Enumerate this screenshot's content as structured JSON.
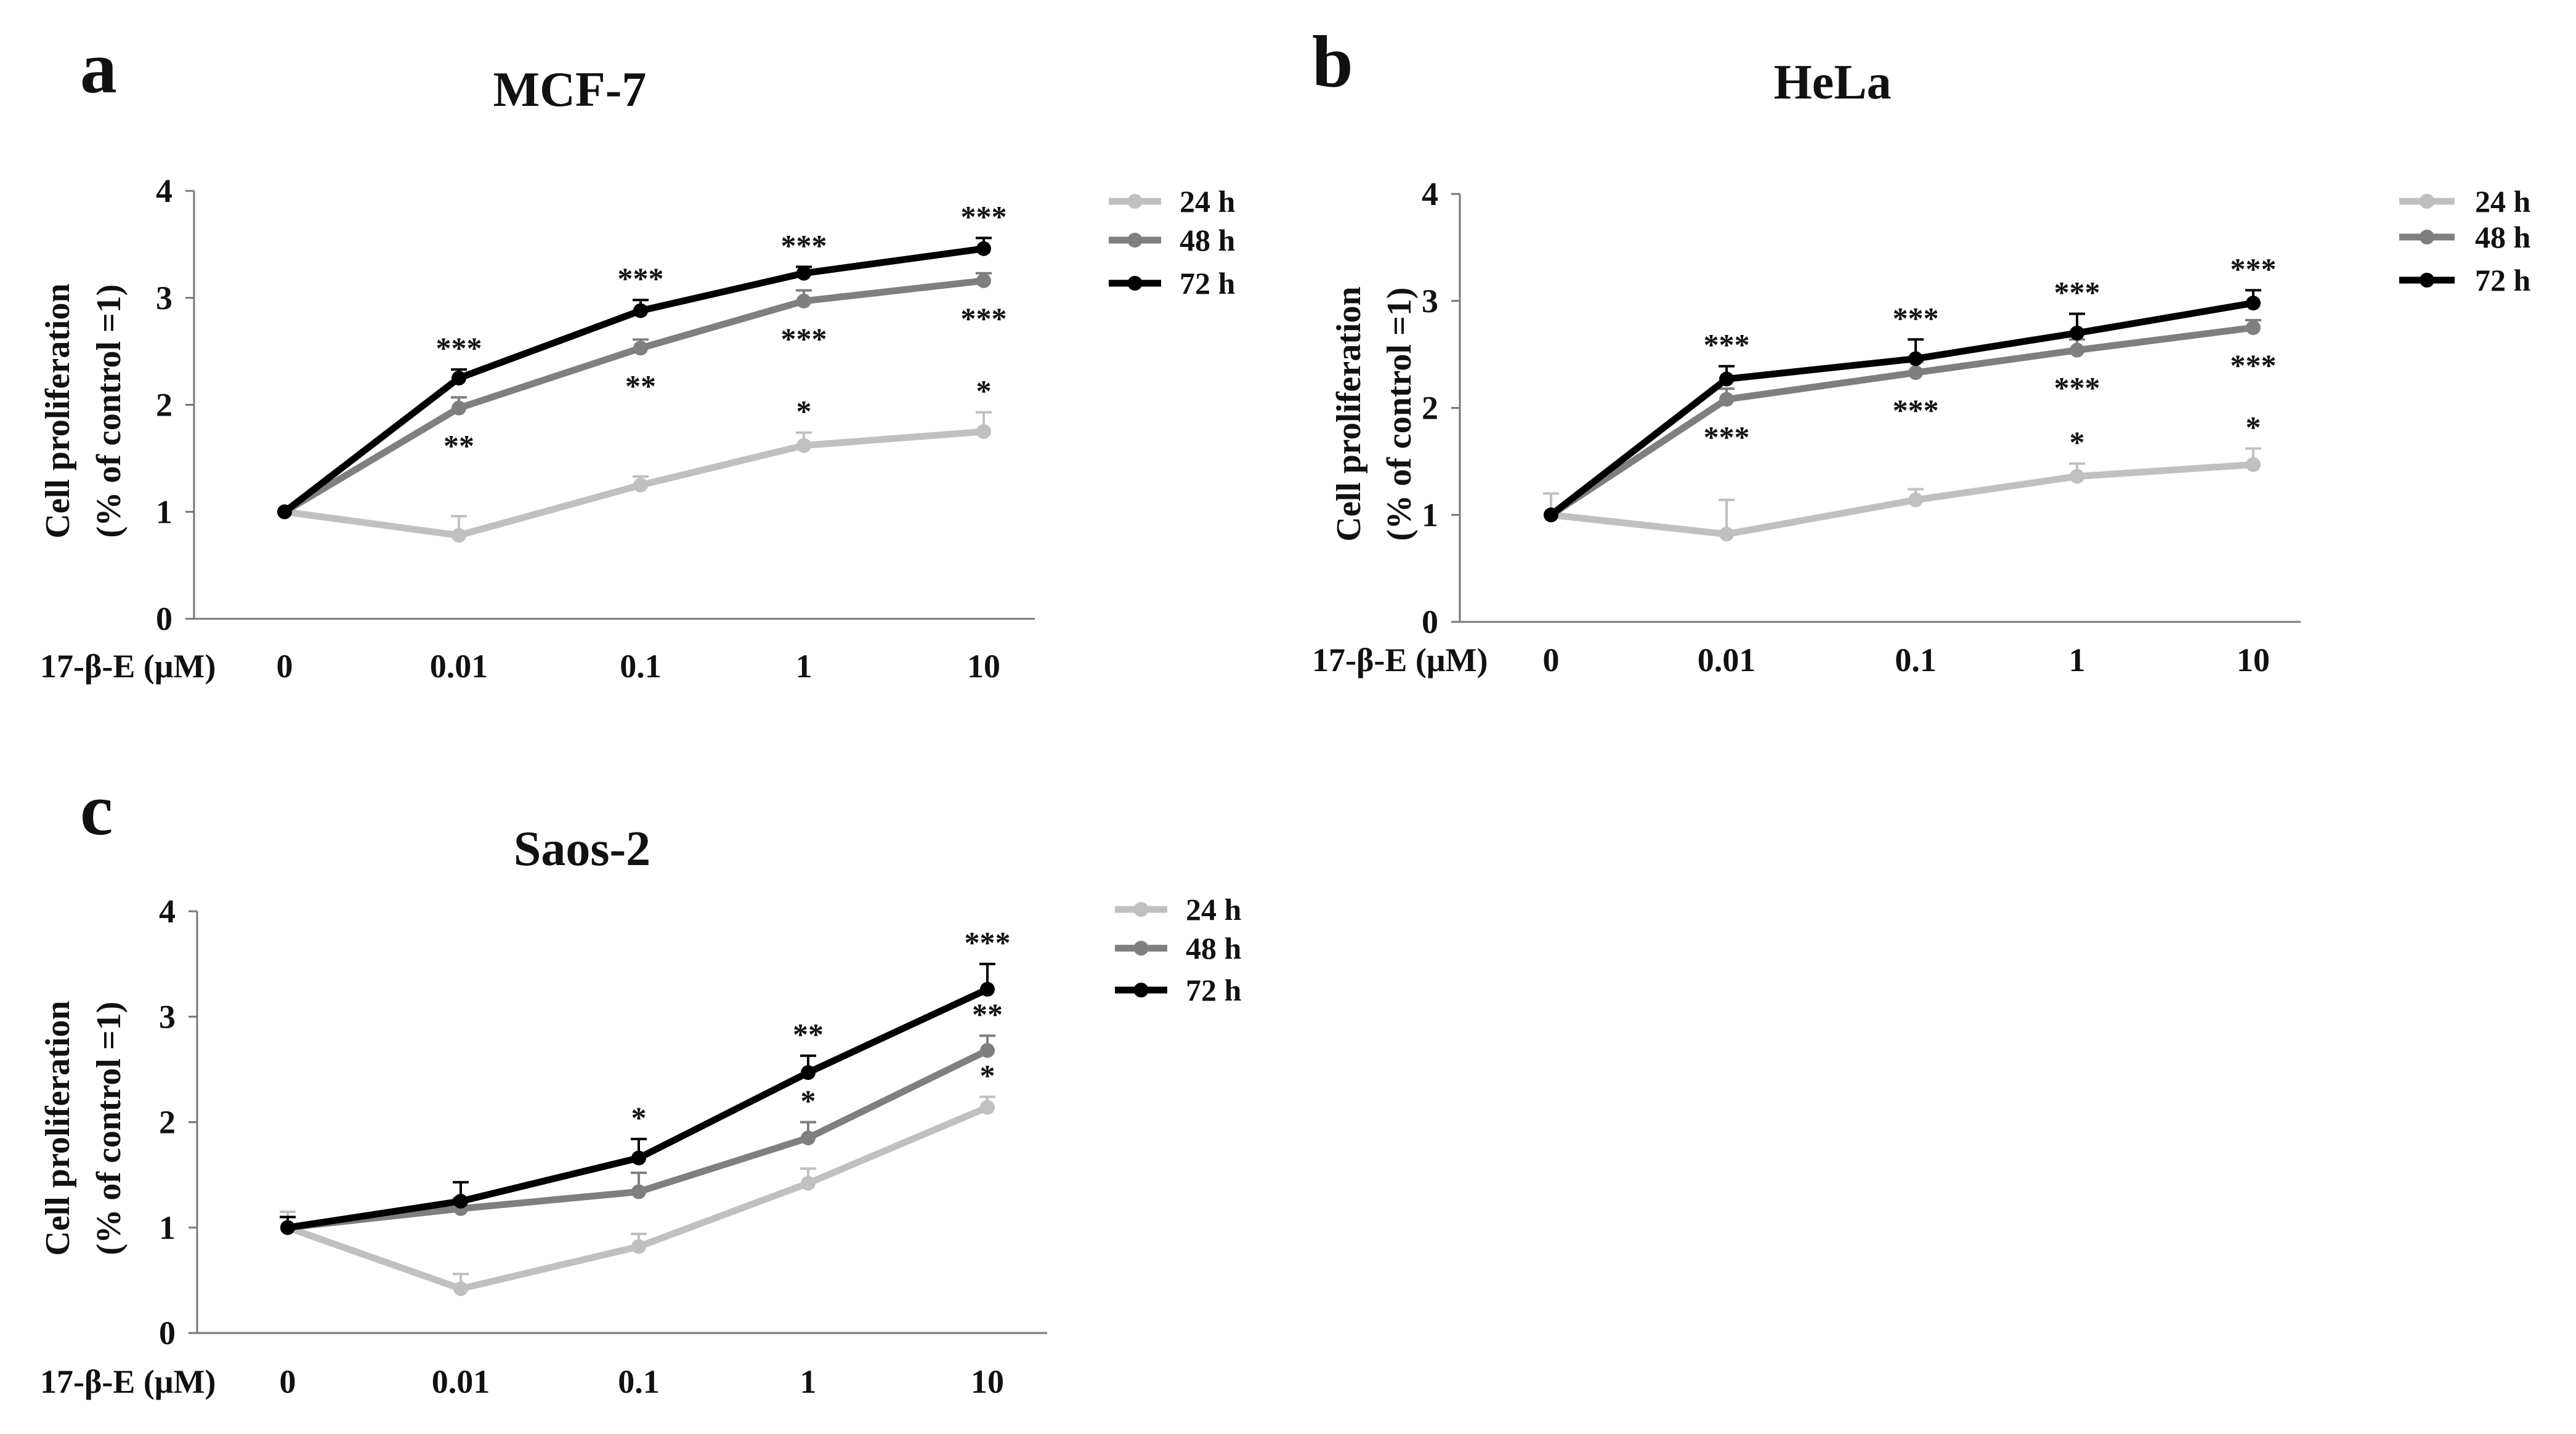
{
  "figure": {
    "panel_count": 3
  },
  "chart_data": [
    {
      "type": "line",
      "panel_letter": "a",
      "title": "MCF-7",
      "xlabel": "17-β-E (μM)",
      "ylabel_line1": "Cell proliferation",
      "ylabel_line2": "(% of control =1)",
      "categories": [
        "0",
        "0.01",
        "0.1",
        "1",
        "10"
      ],
      "ylim": [
        0,
        4
      ],
      "yticks": [
        "0",
        "1",
        "2",
        "3",
        "4"
      ],
      "grid": false,
      "legend_position": "right",
      "series": [
        {
          "name": "24 h",
          "color": "#c0c0c0",
          "values": [
            1.0,
            0.78,
            1.25,
            1.62,
            1.75
          ],
          "errors": [
            0,
            0.18,
            0.08,
            0.12,
            0.18
          ],
          "sig": [
            "",
            "",
            "",
            "*",
            "*"
          ],
          "sig_side": "above"
        },
        {
          "name": "48 h",
          "color": "#7f7f7f",
          "values": [
            1.0,
            1.97,
            2.53,
            2.97,
            3.16
          ],
          "errors": [
            0,
            0.1,
            0.08,
            0.1,
            0.07
          ],
          "sig": [
            "",
            "**",
            "**",
            "***",
            "***"
          ],
          "sig_side": "below"
        },
        {
          "name": "72 h",
          "color": "#000000",
          "values": [
            1.0,
            2.25,
            2.88,
            3.23,
            3.46
          ],
          "errors": [
            0,
            0.08,
            0.1,
            0.06,
            0.1
          ],
          "sig": [
            "",
            "***",
            "***",
            "***",
            "***"
          ],
          "sig_side": "above"
        }
      ]
    },
    {
      "type": "line",
      "panel_letter": "b",
      "title": "HeLa",
      "xlabel": "17-β-E (μM)",
      "ylabel_line1": "Cell proliferation",
      "ylabel_line2": "(% of control =1)",
      "categories": [
        "0",
        "0.01",
        "0.1",
        "1",
        "10"
      ],
      "ylim": [
        0,
        4
      ],
      "yticks": [
        "0",
        "1",
        "2",
        "3",
        "4"
      ],
      "grid": false,
      "legend_position": "right",
      "series": [
        {
          "name": "24 h",
          "color": "#c0c0c0",
          "values": [
            1.0,
            0.82,
            1.14,
            1.36,
            1.47
          ],
          "errors": [
            0.2,
            0.32,
            0.1,
            0.12,
            0.15
          ],
          "sig": [
            "",
            "",
            "",
            "*",
            "*"
          ],
          "sig_side": "above"
        },
        {
          "name": "48 h",
          "color": "#7f7f7f",
          "values": [
            1.0,
            2.08,
            2.33,
            2.54,
            2.75
          ],
          "errors": [
            0,
            0.1,
            0.1,
            0.1,
            0.07
          ],
          "sig": [
            "",
            "***",
            "***",
            "***",
            "***"
          ],
          "sig_side": "below"
        },
        {
          "name": "72 h",
          "color": "#000000",
          "values": [
            1.0,
            2.27,
            2.46,
            2.7,
            2.98
          ],
          "errors": [
            0,
            0.12,
            0.18,
            0.18,
            0.12
          ],
          "sig": [
            "",
            "***",
            "***",
            "***",
            "***"
          ],
          "sig_side": "above"
        }
      ]
    },
    {
      "type": "line",
      "panel_letter": "c",
      "title": "Saos-2",
      "xlabel": "17-β-E (μM)",
      "ylabel_line1": "Cell proliferation",
      "ylabel_line2": "(% of control =1)",
      "categories": [
        "0",
        "0.01",
        "0.1",
        "1",
        "10"
      ],
      "ylim": [
        0,
        4
      ],
      "yticks": [
        "0",
        "1",
        "2",
        "3",
        "4"
      ],
      "grid": false,
      "legend_position": "right",
      "series": [
        {
          "name": "24 h",
          "color": "#c0c0c0",
          "values": [
            1.0,
            0.42,
            0.82,
            1.42,
            2.14
          ],
          "errors": [
            0.15,
            0.14,
            0.12,
            0.14,
            0.1
          ],
          "sig": [
            "",
            "",
            "",
            "",
            "*"
          ],
          "sig_side": "above"
        },
        {
          "name": "48 h",
          "color": "#7f7f7f",
          "values": [
            1.0,
            1.18,
            1.34,
            1.85,
            2.68
          ],
          "errors": [
            0.1,
            0.1,
            0.18,
            0.15,
            0.14
          ],
          "sig": [
            "",
            "",
            "",
            "*",
            "**"
          ],
          "sig_side": "above"
        },
        {
          "name": "72 h",
          "color": "#000000",
          "values": [
            1.0,
            1.25,
            1.66,
            2.47,
            3.26
          ],
          "errors": [
            0.1,
            0.18,
            0.18,
            0.16,
            0.24
          ],
          "sig": [
            "",
            "",
            "*",
            "**",
            "***"
          ],
          "sig_side": "above"
        }
      ]
    }
  ]
}
